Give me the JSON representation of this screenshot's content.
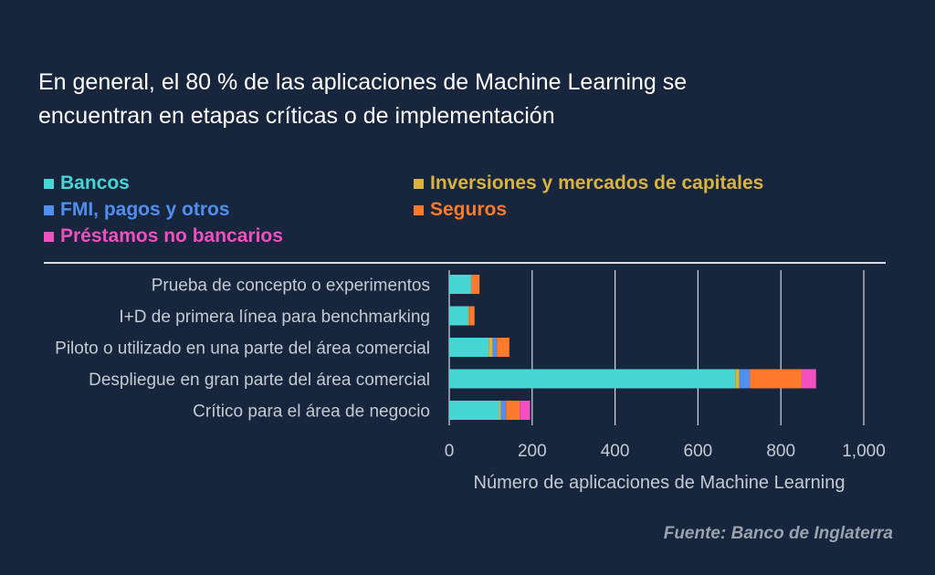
{
  "title_lines": [
    "En general, el 80 % de las aplicaciones de Machine Learning se",
    "encuentran en etapas críticas o de implementación"
  ],
  "source": "Fuente: Banco de Inglaterra",
  "chart_data": {
    "type": "bar",
    "orientation": "horizontal",
    "stacked": true,
    "categories": [
      "Prueba de concepto o experimentos",
      "I+D de primera línea para benchmarking",
      "Piloto o utilizado en una parte del área comercial",
      "Despliegue en gran parte del área comercial",
      "Crítico para el área de negocio"
    ],
    "series": [
      {
        "name": "Bancos",
        "color": "#46d6d6",
        "values": [
          52,
          45,
          95,
          690,
          120
        ]
      },
      {
        "name": "Inversiones y mercados de capitales",
        "color": "#d9b23f",
        "values": [
          2,
          3,
          10,
          10,
          5
        ]
      },
      {
        "name": "FMI, pagos y otros",
        "color": "#4f8ff2",
        "values": [
          1,
          1,
          10,
          25,
          12
        ]
      },
      {
        "name": "Seguros",
        "color": "#ff7a2b",
        "values": [
          18,
          12,
          30,
          125,
          33
        ]
      },
      {
        "name": "Préstamos no bancarios",
        "color": "#f24fbf",
        "values": [
          0,
          0,
          0,
          35,
          25
        ]
      }
    ],
    "xlabel": "Número de aplicaciones de Machine Learning",
    "xlim": [
      0,
      1000
    ],
    "xticks": [
      0,
      200,
      400,
      600,
      800,
      1000
    ],
    "xtick_labels": [
      "0",
      "200",
      "400",
      "600",
      "800",
      "1,000"
    ],
    "grid": "vertical",
    "legend_position": "top"
  }
}
